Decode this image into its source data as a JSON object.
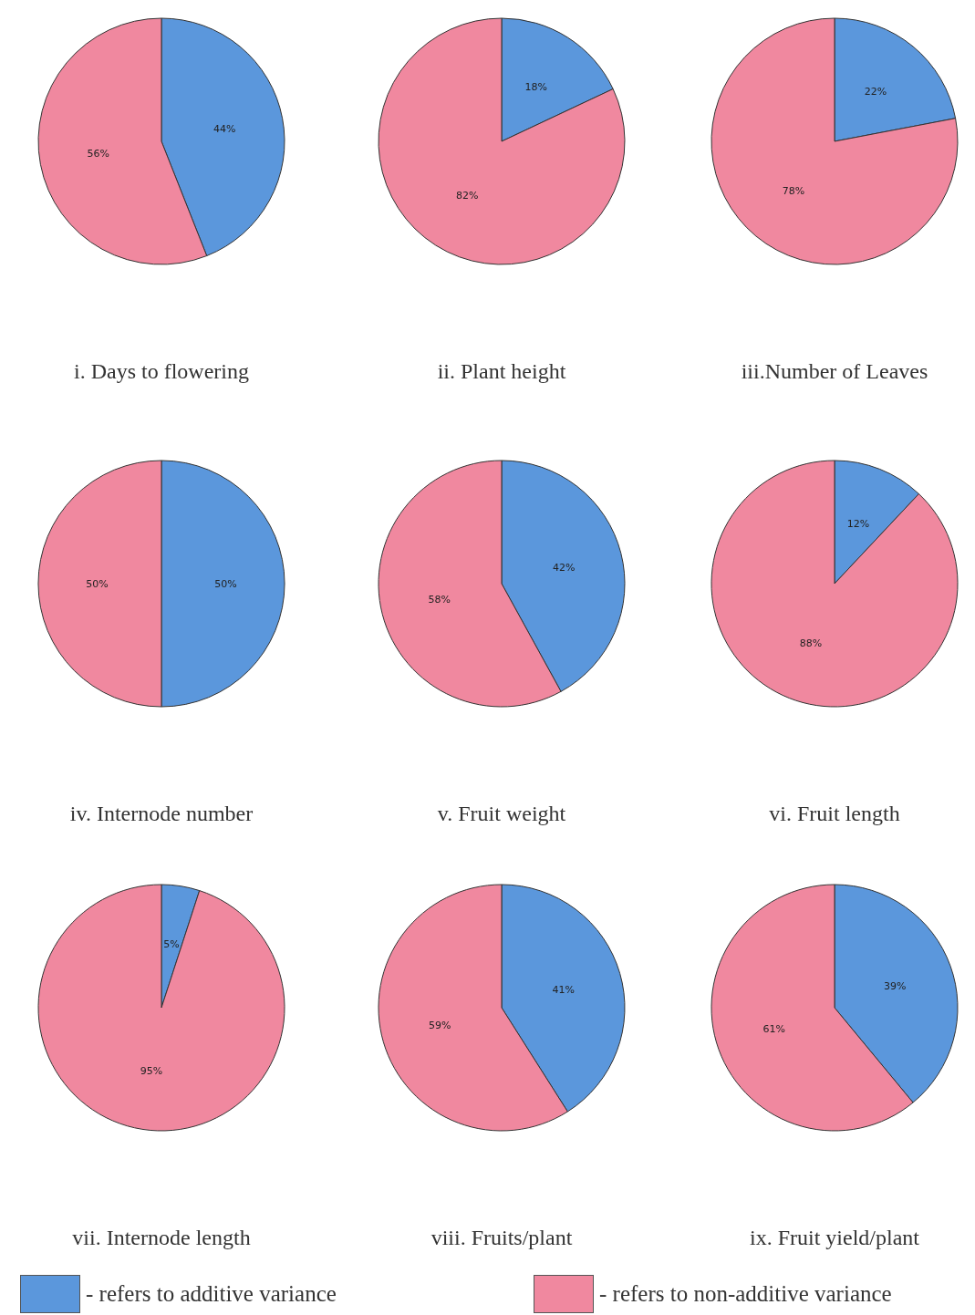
{
  "chart_data": [
    {
      "type": "pie",
      "title": "i. Days to flowering",
      "categories": [
        null,
        null
      ],
      "values": [
        44,
        56
      ],
      "value_labels": [
        "44%",
        "56%"
      ],
      "colors": [
        "#5b97dc",
        "#f0889f"
      ]
    },
    {
      "type": "pie",
      "title": "ii. Plant height",
      "categories": [
        null,
        null
      ],
      "values": [
        18,
        82
      ],
      "value_labels": [
        "18%",
        "82%"
      ],
      "colors": [
        "#5b97dc",
        "#f0889f"
      ]
    },
    {
      "type": "pie",
      "title": "iii.Number of Leaves",
      "categories": [
        null,
        null
      ],
      "values": [
        22,
        78
      ],
      "value_labels": [
        "22%",
        "78%"
      ],
      "colors": [
        "#5b97dc",
        "#f0889f"
      ]
    },
    {
      "type": "pie",
      "title": "iv. Internode number",
      "categories": [
        null,
        null
      ],
      "values": [
        50,
        50
      ],
      "value_labels": [
        "50%",
        "50%"
      ],
      "colors": [
        "#5b97dc",
        "#f0889f"
      ]
    },
    {
      "type": "pie",
      "title": "v. Fruit weight",
      "categories": [
        null,
        null
      ],
      "values": [
        42,
        58
      ],
      "value_labels": [
        "42%",
        "58%"
      ],
      "colors": [
        "#5b97dc",
        "#f0889f"
      ]
    },
    {
      "type": "pie",
      "title": "vi. Fruit length",
      "categories": [
        null,
        null
      ],
      "values": [
        12,
        88
      ],
      "value_labels": [
        "12%",
        "88%"
      ],
      "colors": [
        "#5b97dc",
        "#f0889f"
      ]
    },
    {
      "type": "pie",
      "title": "vii. Internode length",
      "categories": [
        null,
        null
      ],
      "values": [
        5,
        95
      ],
      "value_labels": [
        "5%",
        "95%"
      ],
      "colors": [
        "#5b97dc",
        "#f0889f"
      ]
    },
    {
      "type": "pie",
      "title": "viii. Fruits/plant",
      "categories": [
        null,
        null
      ],
      "values": [
        41,
        59
      ],
      "value_labels": [
        "41%",
        "59%"
      ],
      "colors": [
        "#5b97dc",
        "#f0889f"
      ]
    },
    {
      "type": "pie",
      "title": "ix. Fruit yield/plant",
      "categories": [
        "- refers to additive variance",
        "- refers to non-additive variance"
      ],
      "values": [
        39,
        61
      ],
      "value_labels": [
        "39%",
        "61%"
      ],
      "colors": [
        "#5b97dc",
        "#f0889f"
      ],
      "legend": "bottom"
    }
  ]
}
